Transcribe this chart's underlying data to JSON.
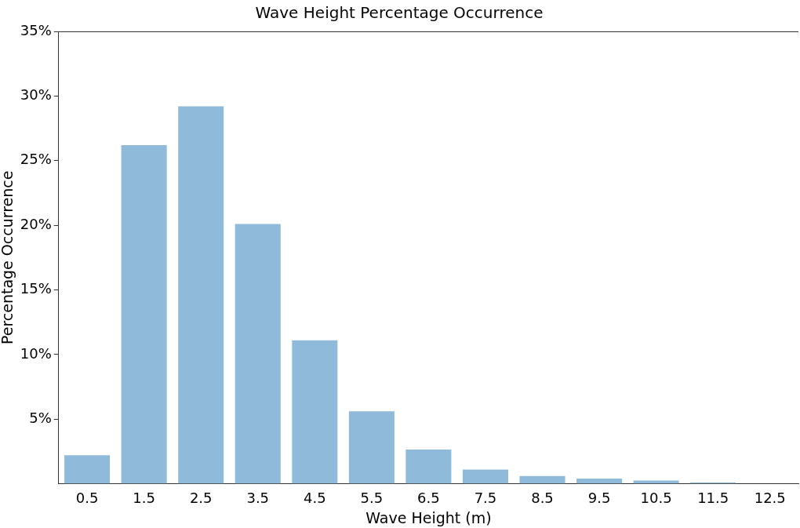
{
  "chart_data": {
    "type": "bar",
    "title": "Wave Height Percentage Occurrence",
    "xlabel": "Wave Height (m)",
    "ylabel": "Percentage Occurrence",
    "categories": [
      "0.5",
      "1.5",
      "2.5",
      "3.5",
      "4.5",
      "5.5",
      "6.5",
      "7.5",
      "8.5",
      "9.5",
      "10.5",
      "11.5",
      "12.5"
    ],
    "values": [
      2.2,
      26.2,
      29.2,
      20.1,
      11.1,
      5.6,
      2.65,
      1.1,
      0.6,
      0.4,
      0.25,
      0.1,
      0
    ],
    "color": "#8fbad9",
    "ylim": [
      0,
      35
    ],
    "yticks": [
      {
        "value": 5,
        "label": "5%"
      },
      {
        "value": 10,
        "label": "10%"
      },
      {
        "value": 15,
        "label": "15%"
      },
      {
        "value": 20,
        "label": "20%"
      },
      {
        "value": 25,
        "label": "25%"
      },
      {
        "value": 30,
        "label": "30%"
      },
      {
        "value": 35,
        "label": "35%"
      }
    ],
    "grid": false,
    "legend": false
  }
}
